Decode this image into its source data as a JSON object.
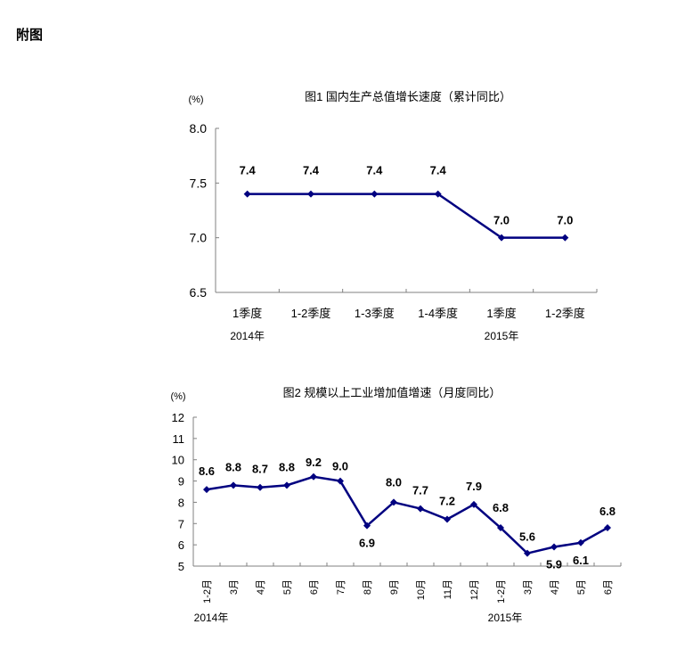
{
  "heading": "附图",
  "chart_data": [
    {
      "type": "line",
      "title": "图1   国内生产总值增长速度（累计同比）",
      "ylabel": "(%)",
      "ylim": [
        6.5,
        8.0
      ],
      "yticks": [
        "6.5",
        "7.0",
        "7.5",
        "8.0"
      ],
      "categories": [
        "1季度",
        "1-2季度",
        "1-3季度",
        "1-4季度",
        "1季度",
        "1-2季度"
      ],
      "year_labels": [
        {
          "label": "2014年",
          "index": 0
        },
        {
          "label": "2015年",
          "index": 4
        }
      ],
      "values": [
        7.4,
        7.4,
        7.4,
        7.4,
        7.0,
        7.0
      ],
      "data_labels": [
        "7.4",
        "7.4",
        "7.4",
        "7.4",
        "7.0",
        "7.0"
      ],
      "color": "#000080"
    },
    {
      "type": "line",
      "title": "图2   规模以上工业增加值增速（月度同比）",
      "ylabel": "(%)",
      "ylim": [
        5,
        12
      ],
      "yticks": [
        "5",
        "6",
        "7",
        "8",
        "9",
        "10",
        "11",
        "12"
      ],
      "categories": [
        "1-2月",
        "3月",
        "4月",
        "5月",
        "6月",
        "7月",
        "8月",
        "9月",
        "10月",
        "11月",
        "12月",
        "1-2月",
        "3月",
        "4月",
        "5月",
        "6月"
      ],
      "year_labels": [
        {
          "label": "2014年",
          "index": 0
        },
        {
          "label": "2015年",
          "index": 11
        }
      ],
      "values": [
        8.6,
        8.8,
        8.7,
        8.8,
        9.2,
        9.0,
        6.9,
        8.0,
        7.7,
        7.2,
        7.9,
        6.8,
        5.6,
        5.9,
        6.1,
        6.8
      ],
      "data_labels": [
        "8.6",
        "8.8",
        "8.7",
        "8.8",
        "9.2",
        "9.0",
        "6.9",
        "8.0",
        "7.7",
        "7.2",
        "7.9",
        "6.8",
        "5.6",
        "5.9",
        "6.1",
        "6.8"
      ],
      "color": "#000080"
    }
  ]
}
